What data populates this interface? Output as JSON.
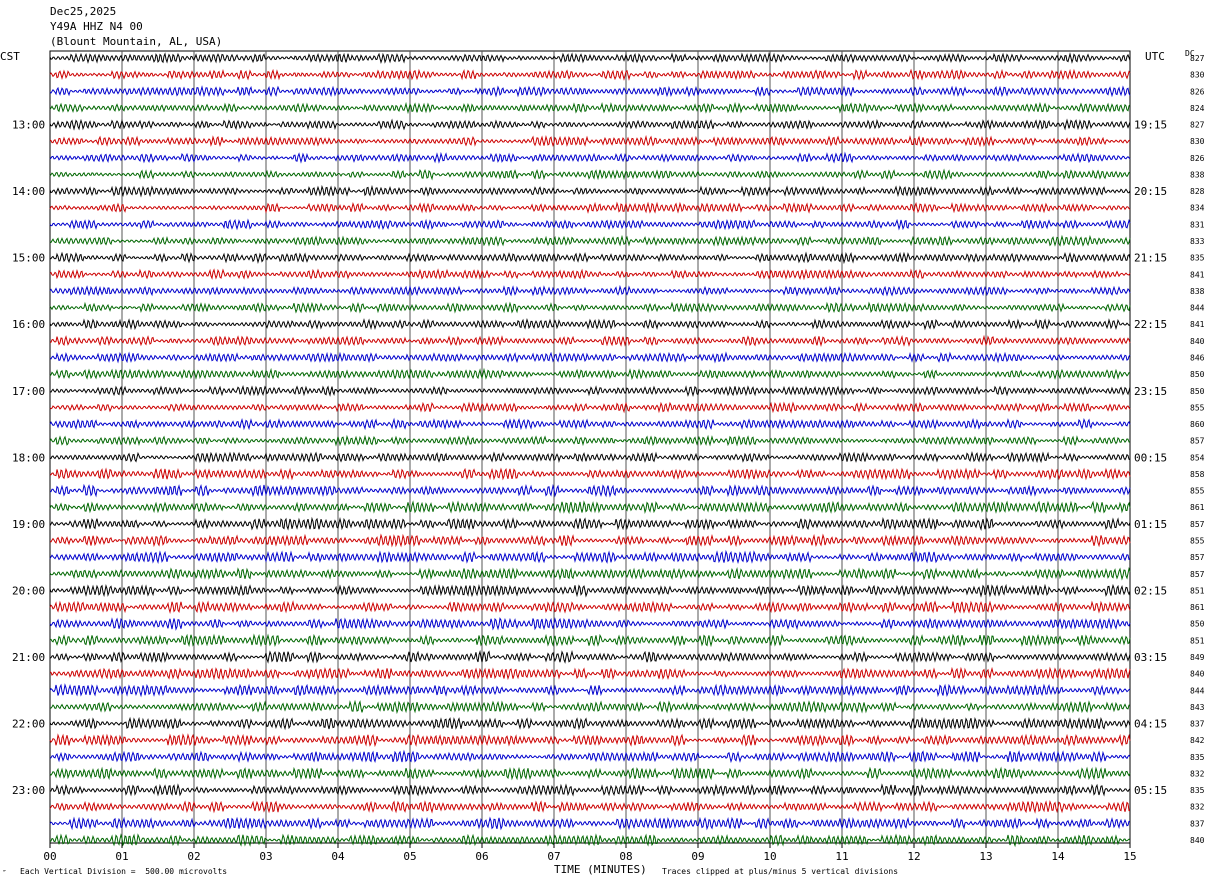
{
  "header": {
    "date": "Dec25,2025",
    "station": "Y49A HHZ N4 00",
    "location": "(Blount Mountain, AL, USA)"
  },
  "left_tz": "CST",
  "right_tz": "UTC",
  "dc_label": "DC",
  "footer": {
    "scale": "Each Vertical Division =  500.00 microvolts",
    "clip": "Traces clipped at plus/minus 5 vertical divisions",
    "corner_mark": "″"
  },
  "chart_data": {
    "type": "line",
    "title": "",
    "xlabel": "TIME (MINUTES)",
    "x_ticks": [
      "00",
      "01",
      "02",
      "03",
      "04",
      "05",
      "06",
      "07",
      "08",
      "09",
      "10",
      "11",
      "12",
      "13",
      "14",
      "15"
    ],
    "xlim": [
      0,
      15
    ],
    "vertical_grid": true,
    "trace_colors": [
      "#000000",
      "#cc0000",
      "#0000cc",
      "#006600"
    ],
    "left_hour_labels": [
      "13:00",
      "14:00",
      "15:00",
      "16:00",
      "17:00",
      "18:00",
      "19:00",
      "20:00",
      "21:00",
      "22:00",
      "23:00"
    ],
    "right_hour_labels": [
      "19:15",
      "20:15",
      "21:15",
      "22:15",
      "23:15",
      "00:15",
      "01:15",
      "02:15",
      "03:15",
      "04:15",
      "05:15"
    ],
    "dc_values": [
      "827",
      "830",
      "826",
      "824",
      "827",
      "830",
      "826",
      "838",
      "828",
      "834",
      "831",
      "833",
      "835",
      "841",
      "838",
      "844",
      "841",
      "840",
      "846",
      "850",
      "850",
      "855",
      "860",
      "857",
      "854",
      "858",
      "855",
      "861",
      "857",
      "855",
      "857",
      "857",
      "851",
      "861",
      "850",
      "851",
      "849",
      "840",
      "844",
      "843",
      "837",
      "842",
      "835",
      "832",
      "835",
      "832",
      "837",
      "840"
    ]
  }
}
